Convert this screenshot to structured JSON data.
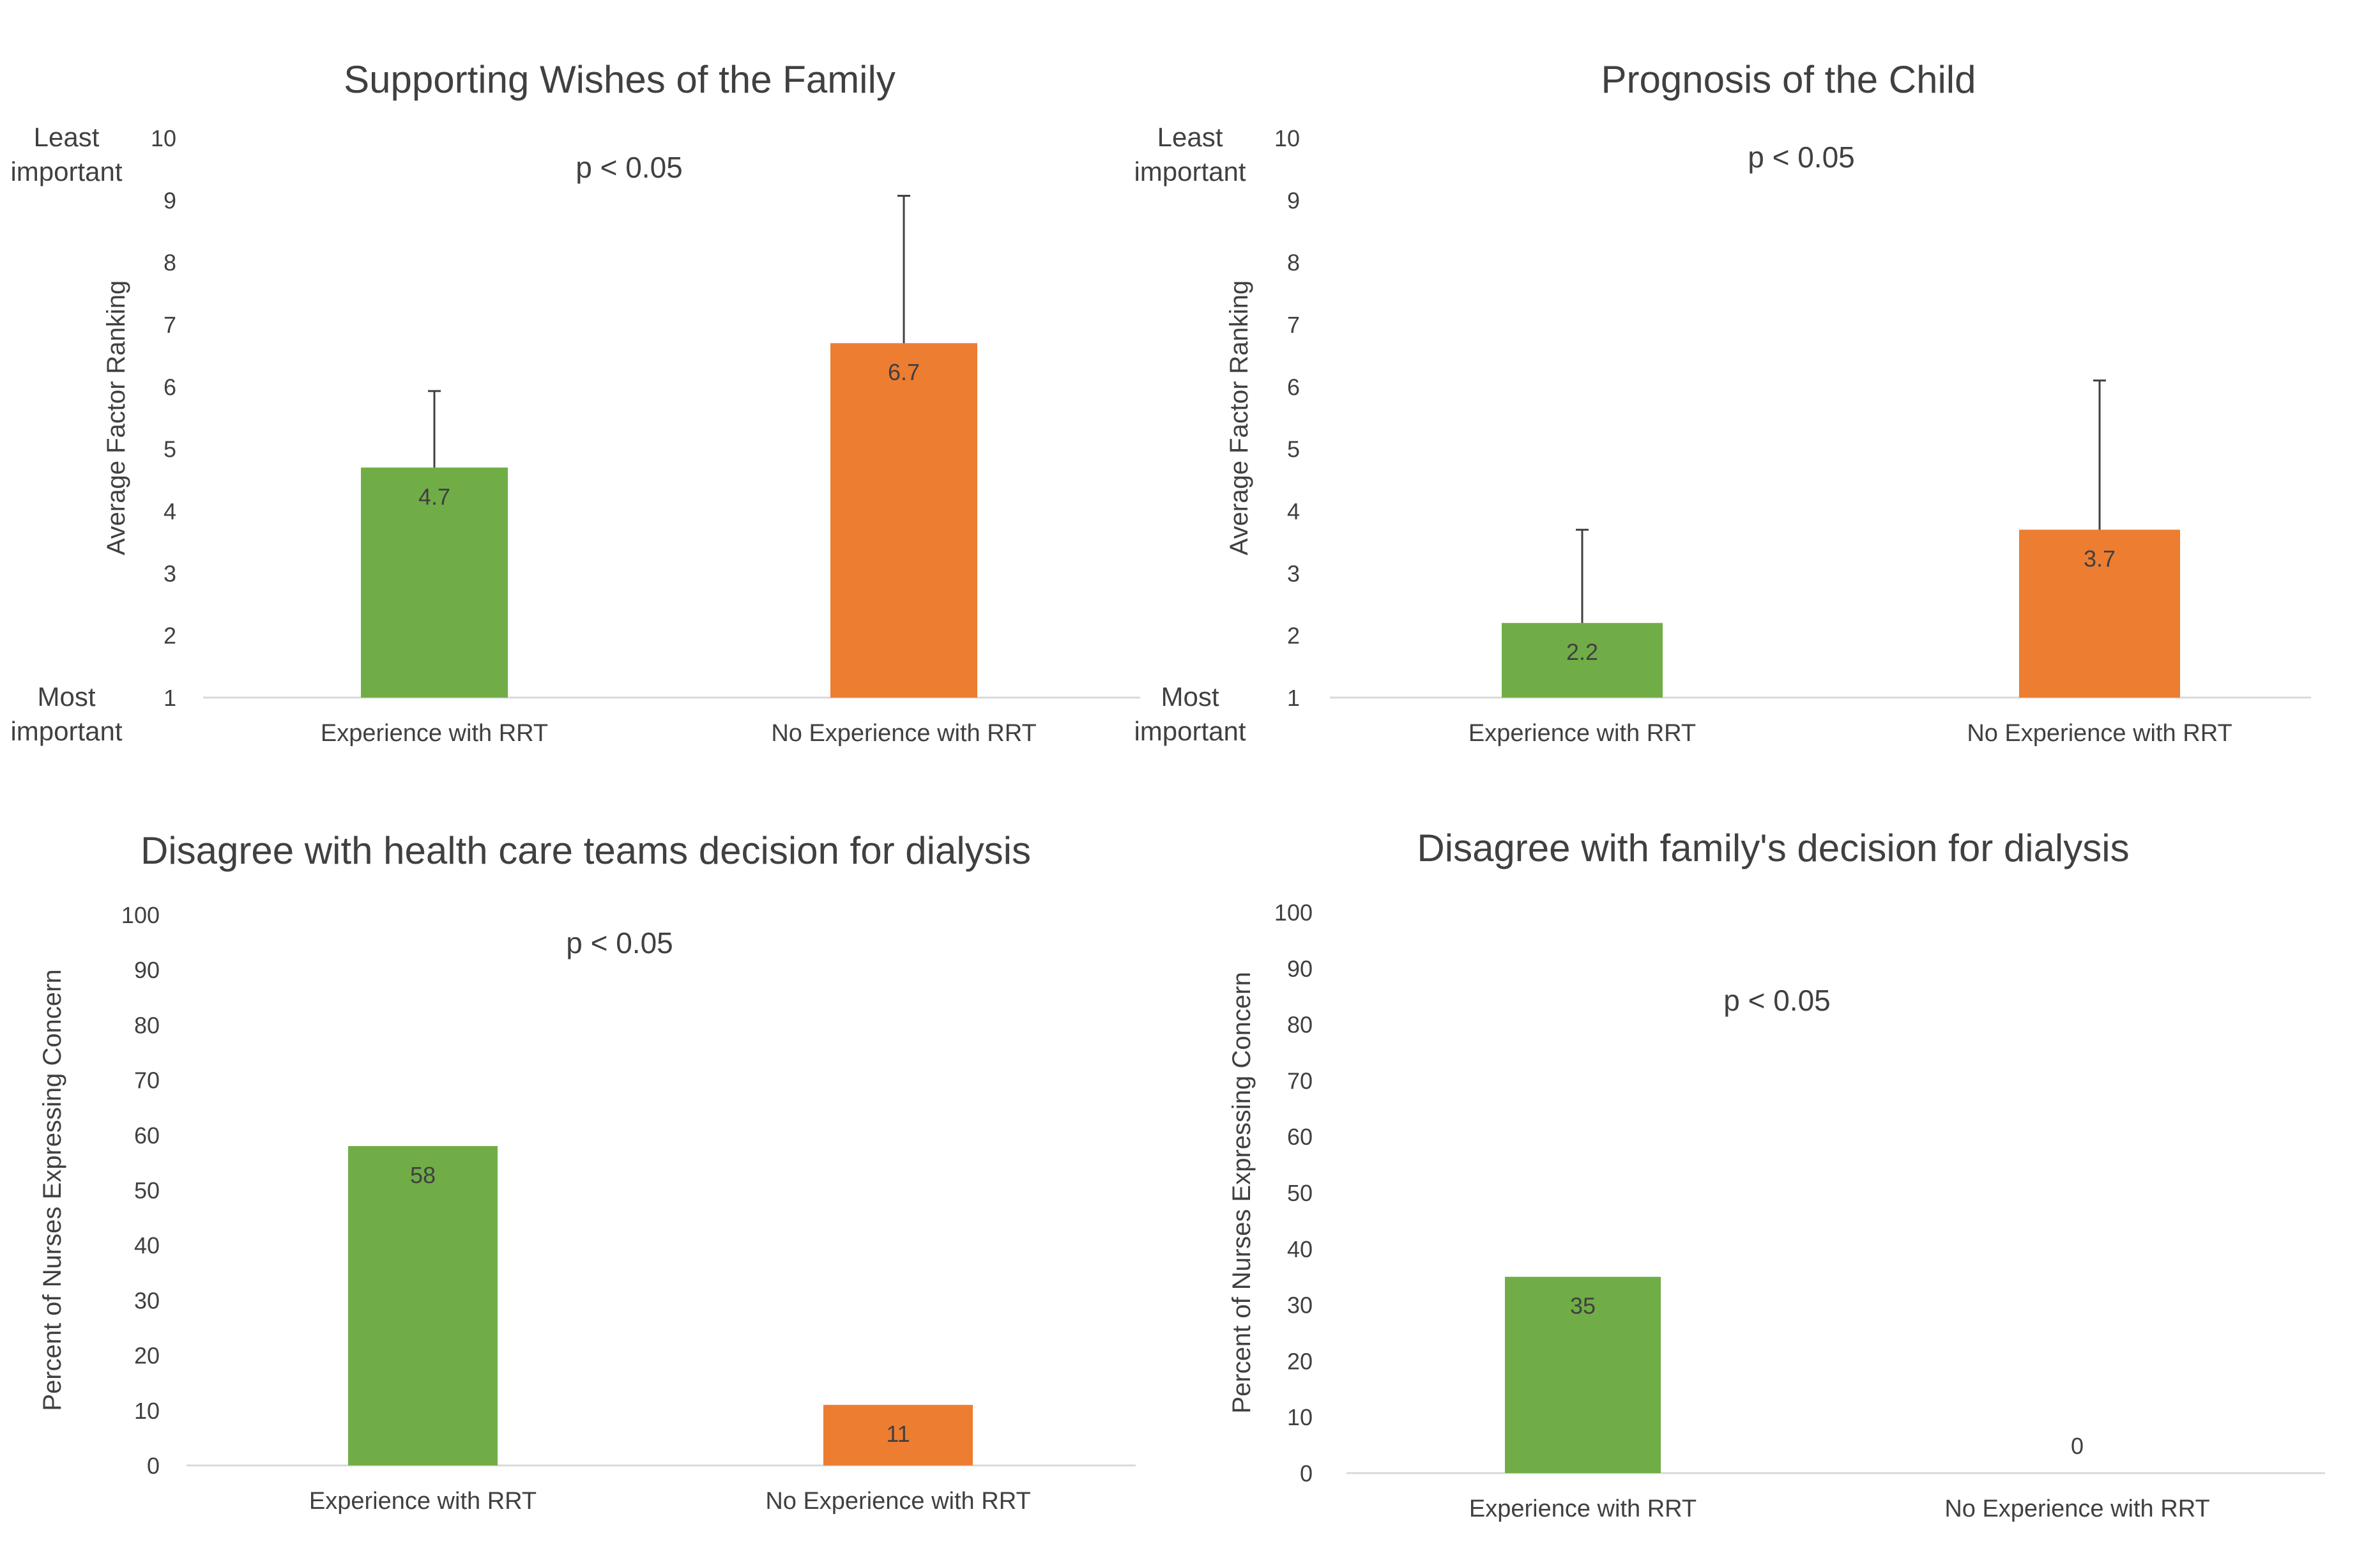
{
  "colors": {
    "green": "#70AD47",
    "orange": "#ED7D31",
    "text": "#404040",
    "axis": "#D9D9D9",
    "error": "#404040"
  },
  "chart_data": [
    {
      "type": "bar",
      "title": "Supporting Wishes of the Family",
      "annotation": "p < 0.05",
      "ylabel": "Average Factor Ranking",
      "ylim": [
        1,
        10
      ],
      "yticks": [
        "1",
        "2",
        "3",
        "4",
        "5",
        "6",
        "7",
        "8",
        "9",
        "10"
      ],
      "y_top_note": [
        "Least",
        "important"
      ],
      "y_bottom_note": [
        "Most",
        "important"
      ],
      "categories": [
        "Experience with RRT",
        "No Experience with RRT"
      ],
      "values": [
        4.7,
        6.7
      ],
      "labels": [
        "4.7",
        "6.7"
      ],
      "error_upper": [
        5.93,
        9.07
      ],
      "colors": [
        "green",
        "orange"
      ]
    },
    {
      "type": "bar",
      "title": "Prognosis of the Child",
      "annotation": "p < 0.05",
      "ylabel": "Average Factor Ranking",
      "ylim": [
        1,
        10
      ],
      "yticks": [
        "1",
        "2",
        "3",
        "4",
        "5",
        "6",
        "7",
        "8",
        "9",
        "10"
      ],
      "y_top_note": [
        "Least",
        "important"
      ],
      "y_bottom_note": [
        "Most",
        "important"
      ],
      "categories": [
        "Experience with RRT",
        "No Experience with RRT"
      ],
      "values": [
        2.2,
        3.7
      ],
      "labels": [
        "2.2",
        "3.7"
      ],
      "error_upper": [
        3.7,
        6.1
      ],
      "colors": [
        "green",
        "orange"
      ]
    },
    {
      "type": "bar",
      "title": "Disagree with health care teams decision for dialysis",
      "annotation": "p < 0.05",
      "ylabel": "Percent of Nurses Expressing Concern",
      "ylim": [
        0,
        100
      ],
      "yticks": [
        "0",
        "10",
        "20",
        "30",
        "40",
        "50",
        "60",
        "70",
        "80",
        "90",
        "100"
      ],
      "categories": [
        "Experience with RRT",
        "No Experience with RRT"
      ],
      "values": [
        58,
        11
      ],
      "labels": [
        "58",
        "11"
      ],
      "colors": [
        "green",
        "orange"
      ]
    },
    {
      "type": "bar",
      "title": "Disagree with family's decision for dialysis",
      "annotation": "p < 0.05",
      "ylabel": "Percent of Nurses Expressing Concern",
      "ylim": [
        0,
        100
      ],
      "yticks": [
        "0",
        "10",
        "20",
        "30",
        "40",
        "50",
        "60",
        "70",
        "80",
        "90",
        "100"
      ],
      "categories": [
        "Experience with RRT",
        "No Experience with RRT"
      ],
      "values": [
        35,
        0
      ],
      "labels": [
        "35",
        "0"
      ],
      "colors": [
        "green",
        "orange"
      ]
    }
  ]
}
